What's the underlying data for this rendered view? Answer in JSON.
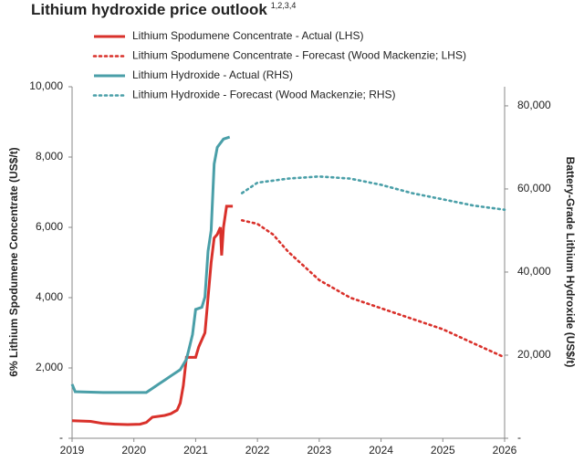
{
  "chart_data": {
    "type": "line",
    "title": "Lithium hydroxide price outlook",
    "title_superscript": "1,2,3,4",
    "y_label": "6% Lithium Spodumene Concentrate (US$/t)",
    "y2_label": "Battery-Grade Lithium Hydroxide (US$/t)",
    "xlim": [
      2019,
      2026
    ],
    "xticks": [
      2019,
      2020,
      2021,
      2022,
      2023,
      2024,
      2025,
      2026
    ],
    "ylim": [
      0,
      10000
    ],
    "yticks": [
      {
        "value": 0,
        "label": "-"
      },
      {
        "value": 2000,
        "label": "2,000"
      },
      {
        "value": 4000,
        "label": "4,000"
      },
      {
        "value": 6000,
        "label": "6,000"
      },
      {
        "value": 8000,
        "label": "8,000"
      },
      {
        "value": 10000,
        "label": "10,000"
      }
    ],
    "y2lim": [
      0,
      84600
    ],
    "y2ticks": [
      {
        "value": 0,
        "label": "-"
      },
      {
        "value": 20000,
        "label": "20,000"
      },
      {
        "value": 40000,
        "label": "40,000"
      },
      {
        "value": 60000,
        "label": "60,000"
      },
      {
        "value": 80000,
        "label": "80,000"
      }
    ],
    "series": [
      {
        "name": "Lithium Spodumene Concentrate - Actual (LHS)",
        "color": "#d9312b",
        "style": "solid",
        "axis": "y",
        "x": [
          2019.0,
          2019.3,
          2019.5,
          2019.7,
          2019.9,
          2020.1,
          2020.2,
          2020.3,
          2020.5,
          2020.6,
          2020.7,
          2020.75,
          2020.8,
          2020.85,
          2021.0,
          2021.05,
          2021.15,
          2021.2,
          2021.25,
          2021.3,
          2021.35,
          2021.4,
          2021.42,
          2021.45,
          2021.5,
          2021.6
        ],
        "values": [
          500,
          480,
          420,
          400,
          390,
          400,
          450,
          600,
          650,
          700,
          800,
          1000,
          1500,
          2300,
          2300,
          2600,
          3000,
          4000,
          5000,
          5700,
          5800,
          6000,
          5200,
          6000,
          6600,
          6600
        ]
      },
      {
        "name": "Lithium Spodumene Concentrate - Forecast (Wood Mackenzie; LHS)",
        "color": "#d9312b",
        "style": "dotted",
        "axis": "y",
        "x": [
          2021.75,
          2022.0,
          2022.25,
          2022.5,
          2023.0,
          2023.5,
          2024.0,
          2024.5,
          2025.0,
          2025.5,
          2026.0
        ],
        "values": [
          6200,
          6100,
          5800,
          5300,
          4500,
          4000,
          3700,
          3400,
          3100,
          2700,
          2300
        ]
      },
      {
        "name": "Lithium Hydroxide - Actual (RHS)",
        "color": "#4a9fa8",
        "style": "solid",
        "axis": "y2",
        "x": [
          2019.0,
          2019.05,
          2019.5,
          2019.8,
          2020.2,
          2020.3,
          2020.4,
          2020.5,
          2020.6,
          2020.75,
          2020.85,
          2020.9,
          2020.95,
          2021.0,
          2021.1,
          2021.15,
          2021.2,
          2021.25,
          2021.3,
          2021.35,
          2021.45,
          2021.55
        ],
        "values": [
          13000,
          11200,
          11000,
          11000,
          11000,
          12000,
          13000,
          14000,
          15000,
          16500,
          19000,
          22000,
          25000,
          31000,
          31500,
          34000,
          45000,
          50000,
          66000,
          70000,
          72000,
          72500
        ]
      },
      {
        "name": "Lithium Hydroxide - Forecast (Wood Mackenzie; RHS)",
        "color": "#4a9fa8",
        "style": "dotted",
        "axis": "y2",
        "x": [
          2021.75,
          2022.0,
          2022.5,
          2023.0,
          2023.5,
          2024.0,
          2024.5,
          2025.0,
          2025.5,
          2026.0
        ],
        "values": [
          59000,
          61500,
          62500,
          63000,
          62500,
          61000,
          59000,
          57500,
          56000,
          55000
        ]
      }
    ]
  }
}
